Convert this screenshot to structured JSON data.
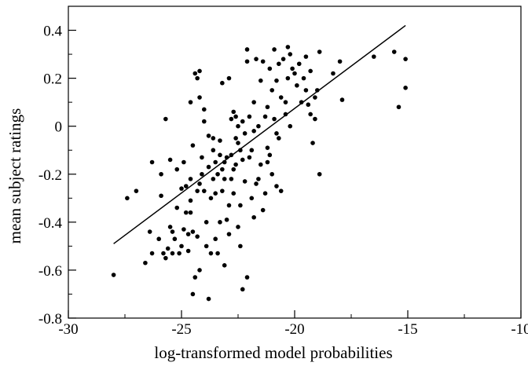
{
  "chart_data": {
    "type": "scatter",
    "xlabel": "log-transformed model probabilities",
    "ylabel": "mean subject ratings",
    "xlim": [
      -30,
      -10
    ],
    "ylim": [
      -0.8,
      0.5
    ],
    "x_ticks": [
      -30,
      -25,
      -20,
      -15,
      -10
    ],
    "x_tick_labels": [
      "-30",
      "-25",
      "-20",
      "-15",
      "-10"
    ],
    "y_ticks": [
      -0.8,
      -0.6,
      -0.4,
      -0.2,
      0,
      0.2,
      0.4
    ],
    "y_tick_labels": [
      "-0.8",
      "-0.6",
      "-0.4",
      "-0.2",
      "0",
      "0.2",
      "0.4"
    ],
    "grid": false,
    "fit_line": {
      "x": [
        -28.0,
        -15.1
      ],
      "y": [
        -0.49,
        0.42
      ]
    },
    "points": [
      [
        -28.0,
        -0.62
      ],
      [
        -27.4,
        -0.3
      ],
      [
        -27.0,
        -0.27
      ],
      [
        -26.6,
        -0.57
      ],
      [
        -26.4,
        -0.44
      ],
      [
        -26.3,
        -0.53
      ],
      [
        -26.3,
        -0.15
      ],
      [
        -26.0,
        -0.47
      ],
      [
        -25.9,
        -0.2
      ],
      [
        -25.9,
        -0.29
      ],
      [
        -25.8,
        -0.53
      ],
      [
        -25.7,
        0.03
      ],
      [
        -25.6,
        -0.51
      ],
      [
        -25.5,
        -0.42
      ],
      [
        -25.5,
        -0.14
      ],
      [
        -25.4,
        -0.53
      ],
      [
        -25.4,
        -0.44
      ],
      [
        -25.3,
        -0.47
      ],
      [
        -25.2,
        -0.34
      ],
      [
        -25.2,
        -0.18
      ],
      [
        -25.1,
        -0.53
      ],
      [
        -25.0,
        -0.5
      ],
      [
        -25.0,
        -0.26
      ],
      [
        -24.9,
        -0.15
      ],
      [
        -24.9,
        -0.43
      ],
      [
        -24.8,
        -0.36
      ],
      [
        -24.8,
        -0.25
      ],
      [
        -24.7,
        -0.45
      ],
      [
        -24.7,
        -0.52
      ],
      [
        -24.6,
        -0.22
      ],
      [
        -24.6,
        -0.31
      ],
      [
        -24.5,
        -0.44
      ],
      [
        -24.5,
        -0.7
      ],
      [
        -24.5,
        -0.08
      ],
      [
        -24.4,
        0.22
      ],
      [
        -24.4,
        -0.63
      ],
      [
        -24.3,
        -0.27
      ],
      [
        -24.3,
        -0.46
      ],
      [
        -24.3,
        0.2
      ],
      [
        -24.2,
        0.23
      ],
      [
        -24.2,
        0.12
      ],
      [
        -24.2,
        -0.24
      ],
      [
        -24.1,
        -0.13
      ],
      [
        -24.1,
        -0.2
      ],
      [
        -24.0,
        0.02
      ],
      [
        -24.0,
        -0.27
      ],
      [
        -24.0,
        0.07
      ],
      [
        -23.9,
        -0.4
      ],
      [
        -23.9,
        -0.5
      ],
      [
        -23.8,
        -0.04
      ],
      [
        -23.8,
        -0.72
      ],
      [
        -23.8,
        -0.17
      ],
      [
        -23.7,
        -0.3
      ],
      [
        -23.7,
        -0.53
      ],
      [
        -23.6,
        -0.22
      ],
      [
        -23.6,
        -0.1
      ],
      [
        -23.5,
        -0.28
      ],
      [
        -23.5,
        -0.47
      ],
      [
        -23.5,
        -0.15
      ],
      [
        -23.4,
        -0.2
      ],
      [
        -23.4,
        -0.53
      ],
      [
        -23.3,
        -0.12
      ],
      [
        -23.3,
        -0.4
      ],
      [
        -23.3,
        -0.06
      ],
      [
        -23.2,
        0.18
      ],
      [
        -23.2,
        -0.18
      ],
      [
        -23.2,
        -0.27
      ],
      [
        -23.1,
        -0.22
      ],
      [
        -23.1,
        -0.15
      ],
      [
        -23.0,
        -0.39
      ],
      [
        -23.0,
        -0.13
      ],
      [
        -22.9,
        0.2
      ],
      [
        -22.9,
        -0.33
      ],
      [
        -22.8,
        -0.22
      ],
      [
        -22.8,
        0.03
      ],
      [
        -22.8,
        -0.12
      ],
      [
        -22.7,
        0.06
      ],
      [
        -22.7,
        -0.18
      ],
      [
        -22.7,
        -0.28
      ],
      [
        -22.6,
        -0.05
      ],
      [
        -22.6,
        0.04
      ],
      [
        -22.6,
        -0.16
      ],
      [
        -22.5,
        0.0
      ],
      [
        -22.5,
        -0.42
      ],
      [
        -22.5,
        -0.07
      ],
      [
        -22.4,
        -0.33
      ],
      [
        -22.4,
        -0.1
      ],
      [
        -22.3,
        0.02
      ],
      [
        -22.3,
        -0.68
      ],
      [
        -22.3,
        -0.14
      ],
      [
        -22.2,
        -0.23
      ],
      [
        -22.2,
        -0.03
      ],
      [
        -22.1,
        0.32
      ],
      [
        -22.1,
        -0.63
      ],
      [
        -22.1,
        0.27
      ],
      [
        -22.0,
        -0.13
      ],
      [
        -22.0,
        0.04
      ],
      [
        -21.9,
        -0.3
      ],
      [
        -21.9,
        -0.1
      ],
      [
        -21.8,
        0.1
      ],
      [
        -21.8,
        -0.02
      ],
      [
        -21.7,
        -0.24
      ],
      [
        -21.7,
        0.28
      ],
      [
        -21.6,
        -0.22
      ],
      [
        -21.6,
        0.0
      ],
      [
        -21.5,
        0.19
      ],
      [
        -21.5,
        -0.16
      ],
      [
        -21.4,
        0.27
      ],
      [
        -21.4,
        -0.35
      ],
      [
        -21.3,
        -0.28
      ],
      [
        -21.3,
        0.04
      ],
      [
        -21.2,
        0.08
      ],
      [
        -21.2,
        -0.09
      ],
      [
        -21.1,
        0.24
      ],
      [
        -21.1,
        -0.12
      ],
      [
        -21.0,
        0.15
      ],
      [
        -21.0,
        -0.2
      ],
      [
        -20.9,
        0.32
      ],
      [
        -20.9,
        0.03
      ],
      [
        -20.8,
        -0.25
      ],
      [
        -20.8,
        0.19
      ],
      [
        -20.7,
        -0.05
      ],
      [
        -20.7,
        0.26
      ],
      [
        -20.6,
        0.12
      ],
      [
        -20.6,
        -0.27
      ],
      [
        -20.5,
        0.28
      ],
      [
        -20.4,
        0.05
      ],
      [
        -20.4,
        0.1
      ],
      [
        -20.3,
        0.33
      ],
      [
        -20.3,
        0.2
      ],
      [
        -20.2,
        0.3
      ],
      [
        -20.1,
        0.24
      ],
      [
        -20.0,
        0.22
      ],
      [
        -19.9,
        0.17
      ],
      [
        -19.8,
        0.26
      ],
      [
        -19.7,
        0.1
      ],
      [
        -19.6,
        0.2
      ],
      [
        -19.5,
        0.29
      ],
      [
        -19.5,
        0.15
      ],
      [
        -19.4,
        0.09
      ],
      [
        -19.3,
        0.23
      ],
      [
        -19.2,
        -0.07
      ],
      [
        -19.1,
        0.12
      ],
      [
        -19.1,
        0.03
      ],
      [
        -19.0,
        0.15
      ],
      [
        -18.9,
        0.31
      ],
      [
        -18.9,
        -0.2
      ],
      [
        -18.3,
        0.22
      ],
      [
        -18.0,
        0.27
      ],
      [
        -17.9,
        0.11
      ],
      [
        -16.5,
        0.29
      ],
      [
        -15.6,
        0.31
      ],
      [
        -15.4,
        0.08
      ],
      [
        -15.1,
        0.28
      ],
      [
        -15.1,
        0.16
      ],
      [
        -21.2,
        -0.15
      ],
      [
        -20.8,
        -0.03
      ],
      [
        -24.6,
        -0.36
      ],
      [
        -23.6,
        -0.05
      ],
      [
        -22.9,
        -0.45
      ],
      [
        -25.7,
        -0.55
      ],
      [
        -24.2,
        -0.6
      ],
      [
        -23.1,
        -0.58
      ],
      [
        -22.4,
        -0.5
      ],
      [
        -21.8,
        -0.38
      ],
      [
        -20.2,
        0.0
      ],
      [
        -19.3,
        0.05
      ],
      [
        -24.6,
        0.1
      ]
    ]
  }
}
